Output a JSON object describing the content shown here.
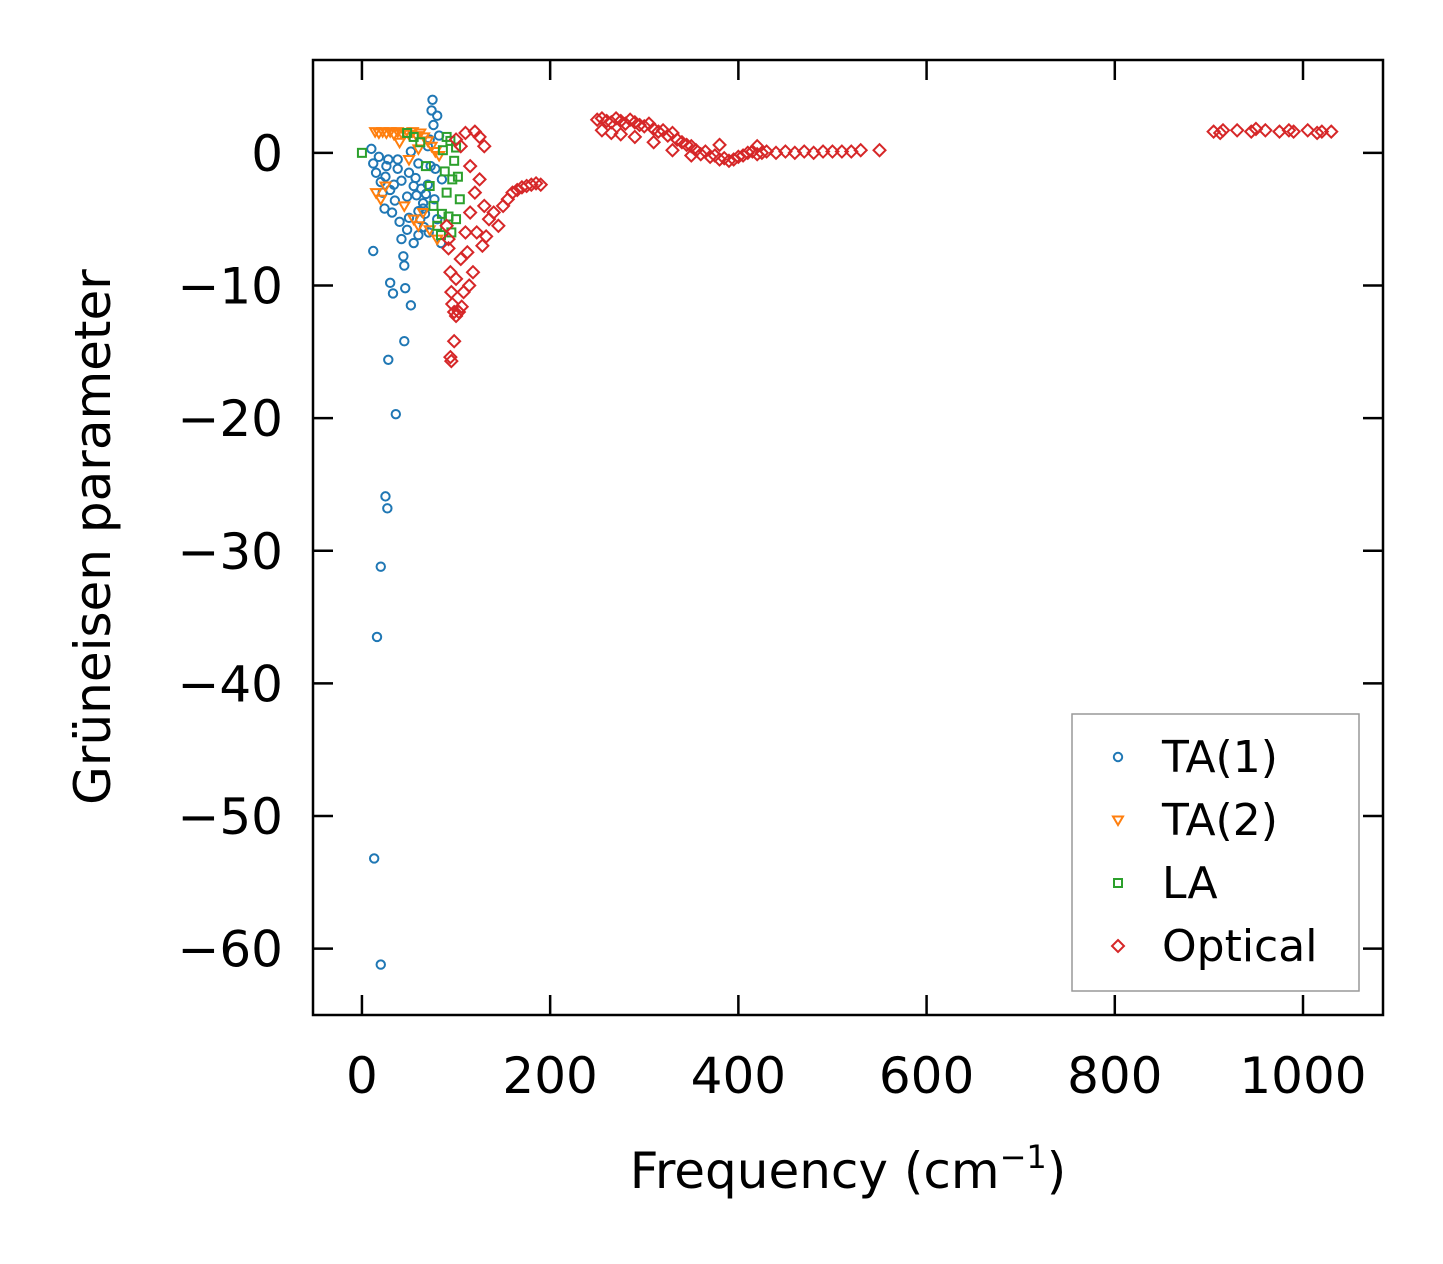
{
  "chart_data": {
    "type": "scatter",
    "title": "",
    "xlabel": "Frequency (cm",
    "xlabel_sup": "−1",
    "xlabel_end": ")",
    "ylabel": "Grüneisen parameter",
    "xlim": [
      -52,
      1085
    ],
    "ylim": [
      -65,
      7
    ],
    "xticks": [
      0,
      200,
      400,
      600,
      800,
      1000
    ],
    "xtick_labels": [
      "0",
      "200",
      "400",
      "600",
      "800",
      "1000"
    ],
    "yticks": [
      0,
      -10,
      -20,
      -30,
      -40,
      -50,
      -60
    ],
    "ytick_labels": [
      "0",
      "−10",
      "−20",
      "−30",
      "−40",
      "−50",
      "−60"
    ],
    "grid": false,
    "legend_position": "lower-right",
    "series": [
      {
        "name": "TA(1)",
        "marker": "circle",
        "color": "#1f77b4",
        "points": [
          [
            10,
            0.3
          ],
          [
            12,
            -0.8
          ],
          [
            15,
            -1.5
          ],
          [
            18,
            -0.3
          ],
          [
            20,
            -2.2
          ],
          [
            22,
            -3.0
          ],
          [
            25,
            -1.8
          ],
          [
            28,
            -0.5
          ],
          [
            30,
            -2.8
          ],
          [
            32,
            -4.5
          ],
          [
            35,
            -3.6
          ],
          [
            38,
            -1.2
          ],
          [
            40,
            -5.2
          ],
          [
            42,
            -6.5
          ],
          [
            44,
            -7.8
          ],
          [
            45,
            -8.5
          ],
          [
            46,
            -10.2
          ],
          [
            48,
            -5.8
          ],
          [
            50,
            -4.9
          ],
          [
            52,
            -11.5
          ],
          [
            55,
            -6.8
          ],
          [
            58,
            -3.2
          ],
          [
            60,
            -6.2
          ],
          [
            62,
            -5.0
          ],
          [
            65,
            -4.2
          ],
          [
            68,
            -3.1
          ],
          [
            70,
            -2.4
          ],
          [
            72,
            1.0
          ],
          [
            74,
            3.2
          ],
          [
            75,
            4.0
          ],
          [
            76,
            2.1
          ],
          [
            78,
            -1.2
          ],
          [
            80,
            2.8
          ],
          [
            82,
            1.3
          ],
          [
            84,
            -6.8
          ],
          [
            85,
            -2.0
          ],
          [
            30,
            -9.8
          ],
          [
            33,
            -10.6
          ],
          [
            45,
            -14.2
          ],
          [
            12,
            -7.4
          ],
          [
            28,
            -15.6
          ],
          [
            36,
            -19.7
          ],
          [
            25,
            -25.9
          ],
          [
            27,
            -26.8
          ],
          [
            20,
            -31.2
          ],
          [
            16,
            -36.5
          ],
          [
            13,
            -53.2
          ],
          [
            20,
            -61.2
          ],
          [
            50,
            -1.5
          ],
          [
            55,
            -2.5
          ],
          [
            60,
            -0.8
          ],
          [
            65,
            -3.8
          ],
          [
            70,
            0.5
          ],
          [
            38,
            -0.5
          ],
          [
            42,
            -2.1
          ],
          [
            48,
            -3.3
          ],
          [
            52,
            0.1
          ],
          [
            57,
            -1.9
          ],
          [
            63,
            -2.7
          ],
          [
            67,
            -4.6
          ],
          [
            73,
            -1.0
          ],
          [
            77,
            -3.5
          ],
          [
            80,
            -5.0
          ],
          [
            24,
            -4.2
          ],
          [
            26,
            -1.0
          ],
          [
            34,
            -2.4
          ],
          [
            60,
            -4.4
          ],
          [
            66,
            -5.6
          ],
          [
            71,
            -6.0
          ]
        ]
      },
      {
        "name": "TA(2)",
        "marker": "triangle-down",
        "color": "#ff7f0e",
        "points": [
          [
            14,
            1.6
          ],
          [
            18,
            1.5
          ],
          [
            22,
            1.6
          ],
          [
            26,
            1.5
          ],
          [
            30,
            1.6
          ],
          [
            34,
            1.4
          ],
          [
            38,
            1.6
          ],
          [
            42,
            1.5
          ],
          [
            46,
            1.5
          ],
          [
            50,
            1.4
          ],
          [
            54,
            1.6
          ],
          [
            58,
            1.3
          ],
          [
            62,
            1.5
          ],
          [
            66,
            1.2
          ],
          [
            70,
            0.9
          ],
          [
            74,
            0.5
          ],
          [
            78,
            0.1
          ],
          [
            82,
            -0.2
          ],
          [
            15,
            -3.0
          ],
          [
            20,
            -3.5
          ],
          [
            25,
            -2.5
          ],
          [
            45,
            -4.0
          ],
          [
            55,
            -5.0
          ],
          [
            60,
            -5.5
          ],
          [
            65,
            -4.5
          ],
          [
            72,
            -5.8
          ],
          [
            80,
            -6.5
          ],
          [
            40,
            0.8
          ],
          [
            50,
            -0.5
          ],
          [
            60,
            0.3
          ]
        ]
      },
      {
        "name": "LA",
        "marker": "square",
        "color": "#2ca02c",
        "points": [
          [
            0,
            0
          ],
          [
            48,
            1.5
          ],
          [
            55,
            1.2
          ],
          [
            62,
            0.8
          ],
          [
            68,
            -1.0
          ],
          [
            72,
            -2.5
          ],
          [
            76,
            -4.0
          ],
          [
            80,
            -5.5
          ],
          [
            84,
            -6.2
          ],
          [
            86,
            0.2
          ],
          [
            88,
            -1.4
          ],
          [
            90,
            -3.0
          ],
          [
            92,
            -4.8
          ],
          [
            94,
            0.9
          ],
          [
            96,
            -2.0
          ],
          [
            98,
            -0.6
          ],
          [
            100,
            0.4
          ],
          [
            102,
            -1.8
          ],
          [
            104,
            -3.5
          ],
          [
            100,
            -5.0
          ],
          [
            95,
            -6.0
          ],
          [
            90,
            1.2
          ],
          [
            85,
            -4.6
          ]
        ]
      },
      {
        "name": "Optical",
        "marker": "diamond",
        "color": "#d62728",
        "points": [
          [
            90,
            -5.5
          ],
          [
            92,
            -7.2
          ],
          [
            94,
            -9.0
          ],
          [
            95,
            -10.5
          ],
          [
            96,
            -11.4
          ],
          [
            98,
            -12.0
          ],
          [
            100,
            -12.3
          ],
          [
            103,
            -12.0
          ],
          [
            106,
            -11.6
          ],
          [
            95,
            -15.7
          ],
          [
            94,
            -15.4
          ],
          [
            98,
            -14.2
          ],
          [
            92,
            -6.5
          ],
          [
            100,
            -9.5
          ],
          [
            105,
            -8.0
          ],
          [
            110,
            -6.0
          ],
          [
            115,
            -4.5
          ],
          [
            120,
            -3.0
          ],
          [
            125,
            -2.0
          ],
          [
            100,
            1.0
          ],
          [
            105,
            0.5
          ],
          [
            110,
            1.5
          ],
          [
            115,
            -1.0
          ],
          [
            120,
            1.6
          ],
          [
            125,
            1.2
          ],
          [
            130,
            0.5
          ],
          [
            130,
            -4.0
          ],
          [
            135,
            -5.0
          ],
          [
            140,
            -4.5
          ],
          [
            145,
            -5.5
          ],
          [
            150,
            -4.0
          ],
          [
            155,
            -3.5
          ],
          [
            160,
            -3.0
          ],
          [
            165,
            -2.8
          ],
          [
            170,
            -2.6
          ],
          [
            175,
            -2.5
          ],
          [
            180,
            -2.4
          ],
          [
            185,
            -2.3
          ],
          [
            190,
            -2.4
          ],
          [
            112,
            -7.5
          ],
          [
            118,
            -9.0
          ],
          [
            122,
            -6.0
          ],
          [
            128,
            -7.0
          ],
          [
            132,
            -6.3
          ],
          [
            108,
            -10.5
          ],
          [
            114,
            -10.0
          ],
          [
            250,
            2.5
          ],
          [
            255,
            2.6
          ],
          [
            260,
            2.4
          ],
          [
            265,
            2.3
          ],
          [
            270,
            2.6
          ],
          [
            275,
            2.4
          ],
          [
            280,
            2.2
          ],
          [
            285,
            2.5
          ],
          [
            290,
            2.3
          ],
          [
            295,
            2.1
          ],
          [
            300,
            2.0
          ],
          [
            305,
            2.2
          ],
          [
            310,
            1.8
          ],
          [
            315,
            1.6
          ],
          [
            320,
            1.7
          ],
          [
            325,
            1.3
          ],
          [
            330,
            1.5
          ],
          [
            335,
            1.0
          ],
          [
            340,
            0.8
          ],
          [
            345,
            0.6
          ],
          [
            350,
            0.5
          ],
          [
            355,
            0.2
          ],
          [
            360,
            -0.1
          ],
          [
            365,
            0.1
          ],
          [
            370,
            -0.3
          ],
          [
            375,
            -0.2
          ],
          [
            380,
            -0.5
          ],
          [
            385,
            -0.4
          ],
          [
            390,
            -0.6
          ],
          [
            395,
            -0.5
          ],
          [
            400,
            -0.3
          ],
          [
            405,
            -0.2
          ],
          [
            410,
            0.0
          ],
          [
            415,
            0.1
          ],
          [
            420,
            -0.1
          ],
          [
            425,
            0.0
          ],
          [
            430,
            0.1
          ],
          [
            440,
            0.0
          ],
          [
            450,
            0.1
          ],
          [
            460,
            0.0
          ],
          [
            470,
            0.1
          ],
          [
            480,
            0.0
          ],
          [
            490,
            0.1
          ],
          [
            500,
            0.1
          ],
          [
            510,
            0.1
          ],
          [
            520,
            0.1
          ],
          [
            530,
            0.2
          ],
          [
            550,
            0.2
          ],
          [
            255,
            1.7
          ],
          [
            265,
            1.5
          ],
          [
            275,
            1.4
          ],
          [
            290,
            1.2
          ],
          [
            310,
            0.8
          ],
          [
            330,
            0.2
          ],
          [
            350,
            -0.2
          ],
          [
            380,
            0.6
          ],
          [
            420,
            0.5
          ],
          [
            905,
            1.6
          ],
          [
            915,
            1.7
          ],
          [
            930,
            1.7
          ],
          [
            945,
            1.6
          ],
          [
            960,
            1.7
          ],
          [
            975,
            1.6
          ],
          [
            990,
            1.6
          ],
          [
            1005,
            1.7
          ],
          [
            1020,
            1.6
          ],
          [
            1030,
            1.6
          ],
          [
            912,
            1.5
          ],
          [
            950,
            1.8
          ],
          [
            985,
            1.7
          ],
          [
            1015,
            1.5
          ]
        ]
      }
    ]
  }
}
